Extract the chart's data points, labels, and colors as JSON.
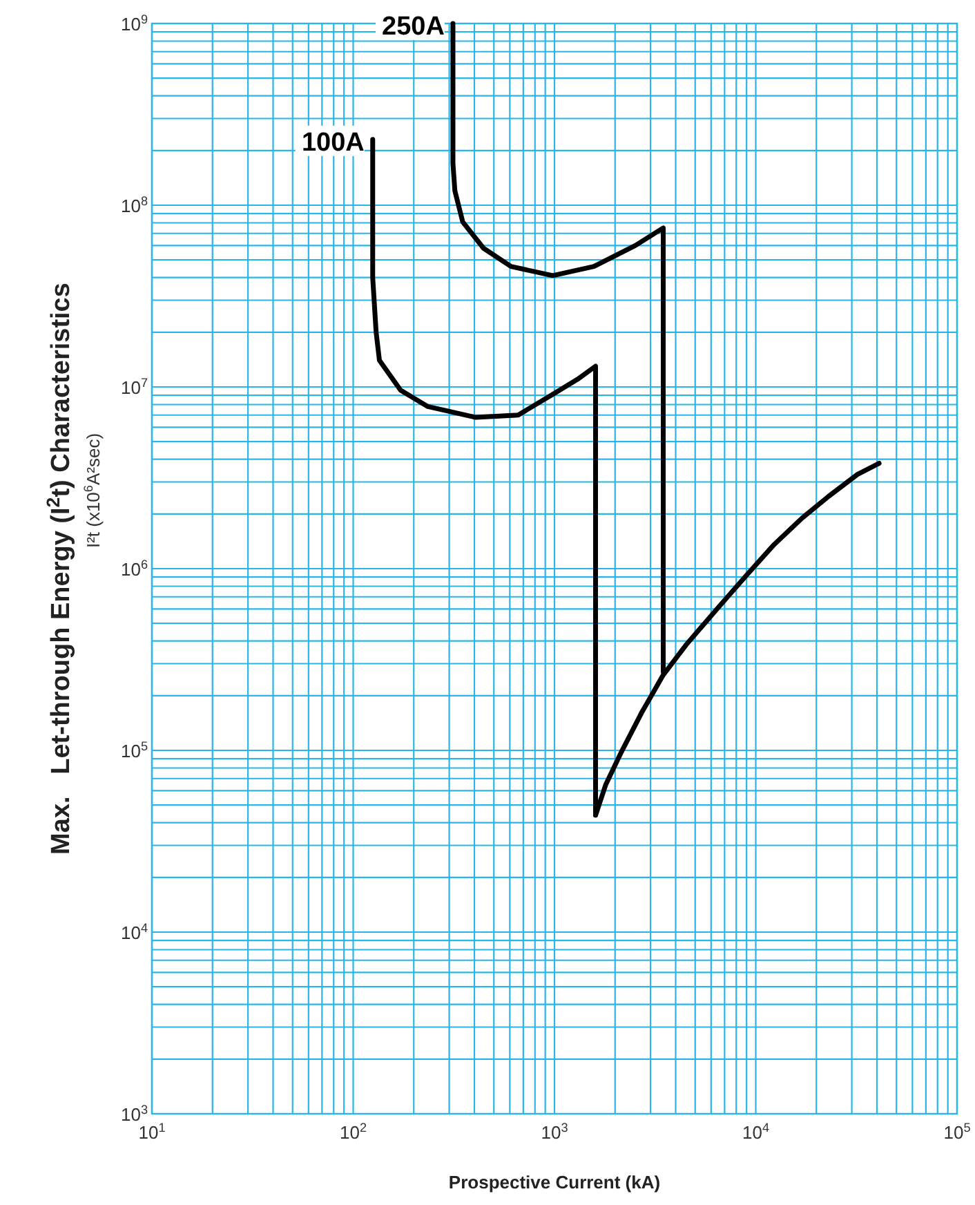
{
  "chart_data": {
    "type": "line",
    "xlabel": "Prospective Current (kA)",
    "ylabel": "Max.   Let-through Energy (I$^{2}$t) Characteristics",
    "annotations": [
      "I²t (x10$^{6}$A²sec)"
    ],
    "log": "xy",
    "grid": true,
    "marker": "none",
    "line_style": "solid",
    "xlim": [
      10,
      100000
    ],
    "ylim": [
      1000,
      1000000000
    ],
    "xticks": [
      {
        "value": 10,
        "label": "10$^{1}$"
      },
      {
        "value": 100,
        "label": "10$^{2}$"
      },
      {
        "value": 1000,
        "label": "10$^{3}$"
      },
      {
        "value": 10000,
        "label": "10$^{4}$"
      },
      {
        "value": 100000,
        "label": "10$^{5}$"
      }
    ],
    "yticks": [
      {
        "value": 1000,
        "label": "10$^{3}$"
      },
      {
        "value": 10000,
        "label": "10$^{4}$"
      },
      {
        "value": 100000,
        "label": "10$^{5}$"
      },
      {
        "value": 1000000,
        "label": "10$^{6}$"
      },
      {
        "value": 10000000,
        "label": "10$^{7}$"
      },
      {
        "value": 100000000,
        "label": "10$^{8}$"
      },
      {
        "value": 1000000000,
        "label": "10$^{9}$"
      }
    ],
    "series": [
      {
        "name": "100A",
        "color": "#000000",
        "x": [
          125,
          125,
          130,
          135,
          172,
          235,
          407,
          660,
          980,
          1300,
          1600,
          1600,
          1600
        ],
        "values": [
          230000000,
          40000000,
          20000000,
          14000000,
          9600000,
          7800000,
          6800000,
          7000000,
          9100000,
          11000000,
          13000000,
          1000000,
          44000
        ]
      },
      {
        "name": "250A",
        "color": "#000000",
        "x": [
          313,
          313,
          320,
          350,
          444,
          608,
          980,
          1570,
          2520,
          3470,
          3470,
          3470
        ],
        "values": [
          1000000000,
          170000000,
          120000000,
          81000000,
          58000000,
          46000000,
          41000000,
          46000000,
          60000000,
          75000000,
          2000000,
          270000
        ]
      },
      {
        "color": "#000000",
        "x": [
          1600,
          1800,
          2150,
          2700,
          3470,
          4500,
          6500,
          9000,
          12200,
          17000,
          23000,
          32000,
          41000
        ],
        "values": [
          44000,
          65000,
          98000,
          160000,
          260000,
          380000,
          610000,
          920000,
          1340000,
          1900000,
          2500000,
          3300000,
          3800000
        ]
      }
    ]
  }
}
